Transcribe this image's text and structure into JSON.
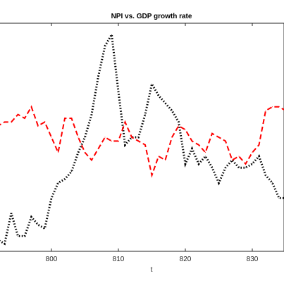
{
  "chart_data": {
    "type": "line",
    "title": "NPI vs. GDP growth rate",
    "xlabel": "t",
    "ylabel": "",
    "xlim": [
      789,
      835
    ],
    "ylim": [
      -3,
      3
    ],
    "x_ticks": [
      800,
      810,
      820,
      830
    ],
    "x_tick_labels": [
      "800",
      "810",
      "820",
      "830"
    ],
    "grid": false,
    "series": [
      {
        "style": "dotted",
        "color": "#000000",
        "x": [
          789,
          790,
          791,
          792,
          793,
          794,
          795,
          796,
          797,
          798,
          799,
          800,
          801,
          802,
          803,
          804,
          805,
          806,
          807,
          808,
          809,
          810,
          811,
          812,
          813,
          814,
          815,
          816,
          817,
          818,
          819,
          820,
          821,
          822,
          823,
          824,
          825,
          826,
          827,
          828,
          829,
          830,
          831,
          832,
          833,
          834,
          835
        ],
        "y": [
          -1.3,
          -1.6,
          -2.4,
          -2.7,
          -2.8,
          -2.0,
          -2.6,
          -2.6,
          -2.1,
          -2.3,
          -2.4,
          -1.6,
          -1.2,
          -1.1,
          -0.9,
          -0.4,
          0.0,
          0.6,
          1.6,
          2.4,
          2.7,
          1.2,
          -0.2,
          0.0,
          0.0,
          0.6,
          1.4,
          1.1,
          0.9,
          0.7,
          0.4,
          -0.7,
          -0.3,
          -0.7,
          -0.5,
          -0.8,
          -1.2,
          -0.8,
          -0.6,
          -0.8,
          -0.8,
          -0.7,
          -0.5,
          -1.0,
          -1.2,
          -1.6,
          -1.6
        ]
      },
      {
        "style": "dashed",
        "color": "#ff0000",
        "x": [
          789,
          790,
          791,
          792,
          793,
          794,
          795,
          796,
          797,
          798,
          799,
          800,
          801,
          802,
          803,
          804,
          805,
          806,
          807,
          808,
          809,
          810,
          811,
          812,
          813,
          814,
          815,
          816,
          817,
          818,
          819,
          820,
          821,
          822,
          823,
          824,
          825,
          826,
          827,
          828,
          829,
          830,
          831,
          832,
          833,
          834,
          835
        ],
        "y": [
          0.2,
          0.1,
          0.3,
          0.3,
          0.4,
          0.4,
          0.6,
          0.5,
          0.8,
          0.3,
          0.4,
          0.0,
          -0.4,
          0.5,
          0.5,
          0.0,
          -0.4,
          -0.6,
          -0.3,
          0.0,
          -0.1,
          -0.1,
          0.4,
          0.0,
          -0.1,
          -0.2,
          -1.0,
          -0.5,
          -0.6,
          0.0,
          0.3,
          0.2,
          -0.1,
          -0.2,
          -0.4,
          0.1,
          0.0,
          -0.1,
          -0.6,
          -0.5,
          -0.7,
          -0.4,
          -0.2,
          0.7,
          0.8,
          0.8,
          0.7
        ]
      }
    ]
  }
}
